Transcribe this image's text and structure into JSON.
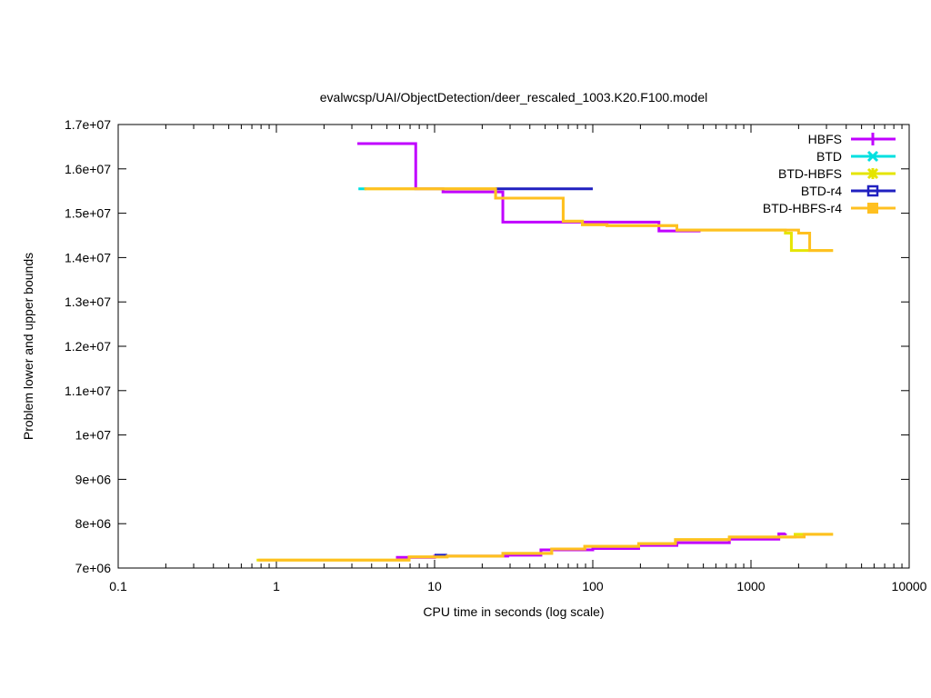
{
  "chart_data": {
    "type": "line",
    "title": "evalwcsp/UAI/ObjectDetection/deer_rescaled_1003.K20.F100.model",
    "xlabel": "CPU time in seconds (log scale)",
    "ylabel": "Problem lower and upper bounds",
    "xscale": "log",
    "xlim": [
      0.1,
      10000
    ],
    "ylim": [
      7000000,
      17000000
    ],
    "xticks": [
      0.1,
      1,
      10,
      100,
      1000,
      10000
    ],
    "xtick_labels": [
      "0.1",
      "1",
      "10",
      "100",
      "1000",
      "10000"
    ],
    "yticks": [
      7000000,
      8000000,
      9000000,
      10000000,
      11000000,
      12000000,
      13000000,
      14000000,
      15000000,
      16000000,
      17000000
    ],
    "ytick_labels": [
      "7e+06",
      "8e+06",
      "9e+06",
      "1e+07",
      "1.1e+07",
      "1.2e+07",
      "1.3e+07",
      "1.4e+07",
      "1.5e+07",
      "1.6e+07",
      "1.7e+07"
    ],
    "legend_position": "top-right",
    "series": [
      {
        "name": "HBFS",
        "color": "#c000ff",
        "marker": "plus",
        "upper": [
          [
            3.25,
            16570000
          ],
          [
            7.6,
            15550000
          ],
          [
            11.3,
            15480000
          ],
          [
            27,
            14800000
          ],
          [
            262,
            14600000
          ],
          [
            480,
            14600000
          ]
        ],
        "lower": [
          [
            5.7,
            7240000
          ],
          [
            10,
            7270000
          ],
          [
            29,
            7290000
          ],
          [
            47,
            7410000
          ],
          [
            100,
            7440000
          ],
          [
            195,
            7510000
          ],
          [
            340,
            7570000
          ],
          [
            730,
            7650000
          ],
          [
            1500,
            7770000
          ],
          [
            1650,
            7780000
          ]
        ]
      },
      {
        "name": "BTD",
        "color": "#00e0e0",
        "marker": "x",
        "upper": [
          [
            3.3,
            15550000
          ],
          [
            3.7,
            15550000
          ]
        ],
        "lower": []
      },
      {
        "name": "BTD-HBFS",
        "color": "#e5e500",
        "marker": "star",
        "upper": [
          [
            3.6,
            15550000
          ],
          [
            24.3,
            15340000
          ],
          [
            65,
            14820000
          ],
          [
            86,
            14740000
          ],
          [
            123,
            14720000
          ],
          [
            340,
            14620000
          ],
          [
            1650,
            14550000
          ],
          [
            1800,
            14160000
          ],
          [
            3300,
            14160000
          ]
        ],
        "lower": [
          [
            0.75,
            7180000
          ],
          [
            6.9,
            7250000
          ],
          [
            12,
            7270000
          ],
          [
            27,
            7330000
          ],
          [
            55,
            7430000
          ],
          [
            89,
            7490000
          ],
          [
            195,
            7550000
          ],
          [
            333,
            7640000
          ],
          [
            730,
            7700000
          ],
          [
            1900,
            7760000
          ],
          [
            3300,
            7760000
          ]
        ]
      },
      {
        "name": "BTD-r4",
        "color": "#2020c0",
        "marker": "open-square",
        "upper": [
          [
            24.3,
            15550000
          ],
          [
            100,
            15550000
          ]
        ],
        "lower": [
          [
            10,
            7290000
          ],
          [
            12,
            7290000
          ]
        ]
      },
      {
        "name": "BTD-HBFS-r4",
        "color": "#ffc020",
        "marker": "filled-square",
        "upper": [
          [
            3.6,
            15550000
          ],
          [
            24.3,
            15340000
          ],
          [
            65,
            14820000
          ],
          [
            86,
            14740000
          ],
          [
            123,
            14720000
          ],
          [
            340,
            14620000
          ],
          [
            2000,
            14550000
          ],
          [
            2350,
            14160000
          ],
          [
            3300,
            14160000
          ]
        ],
        "lower": [
          [
            0.77,
            7180000
          ],
          [
            6.9,
            7250000
          ],
          [
            12,
            7270000
          ],
          [
            27,
            7330000
          ],
          [
            55,
            7430000
          ],
          [
            89,
            7490000
          ],
          [
            195,
            7550000
          ],
          [
            333,
            7640000
          ],
          [
            730,
            7700000
          ],
          [
            2170,
            7760000
          ],
          [
            3300,
            7760000
          ]
        ]
      }
    ]
  }
}
